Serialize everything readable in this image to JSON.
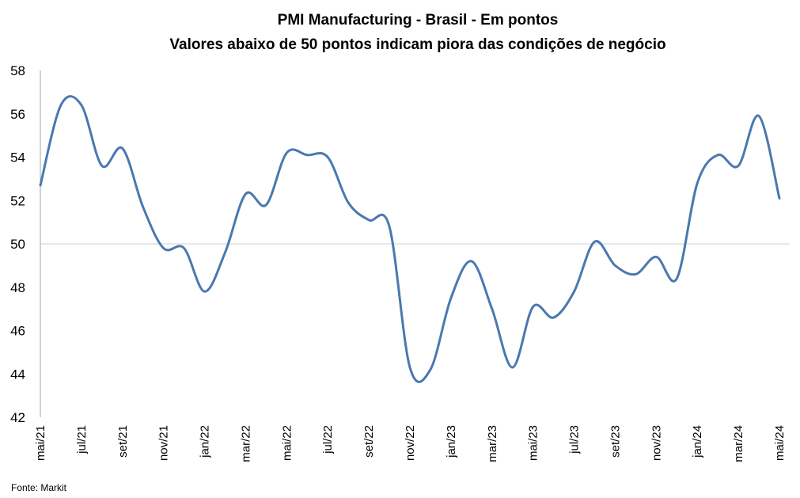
{
  "chart_data": {
    "type": "line",
    "title": "PMI Manufacturing - Brasil - Em pontos",
    "subtitle": "Valores abaixo de 50 pontos indicam piora das condições de negócio",
    "source": "Fonte: Markit",
    "ylim": [
      42,
      58
    ],
    "yticks": [
      "42",
      "44",
      "46",
      "48",
      "50",
      "52",
      "54",
      "56",
      "58"
    ],
    "reference_line": 50,
    "grid": false,
    "color": "#4a78b0",
    "x": [
      "mai/21",
      "jun/21",
      "jul/21",
      "ago/21",
      "set/21",
      "out/21",
      "nov/21",
      "dez/21",
      "jan/22",
      "fev/22",
      "mar/22",
      "abr/22",
      "mai/22",
      "jun/22",
      "jul/22",
      "ago/22",
      "set/22",
      "out/22",
      "nov/22",
      "dez/22",
      "jan/23",
      "fev/23",
      "mar/23",
      "abr/23",
      "mai/23",
      "jun/23",
      "jul/23",
      "ago/23",
      "set/23",
      "out/23",
      "nov/23",
      "dez/23",
      "jan/24",
      "fev/24",
      "mar/24",
      "abr/24",
      "mai/24"
    ],
    "xtick_labels": [
      "mai/21",
      "jul/21",
      "set/21",
      "nov/21",
      "jan/22",
      "mar/22",
      "mai/22",
      "jul/22",
      "set/22",
      "nov/22",
      "jan/23",
      "mar/23",
      "mai/23",
      "jul/23",
      "set/23",
      "nov/23",
      "jan/24",
      "mar/24",
      "mai/24"
    ],
    "series": [
      {
        "values": [
          52.7,
          56.4,
          56.4,
          53.6,
          54.4,
          51.7,
          49.8,
          49.8,
          47.8,
          49.6,
          52.3,
          51.8,
          54.2,
          54.1,
          54.0,
          51.9,
          51.1,
          50.8,
          44.3,
          44.2,
          47.5,
          49.2,
          47.0,
          44.3,
          47.1,
          46.6,
          47.8,
          50.1,
          49.0,
          48.6,
          49.4,
          48.4,
          52.8,
          54.1,
          53.6,
          55.9,
          52.1
        ]
      }
    ]
  }
}
